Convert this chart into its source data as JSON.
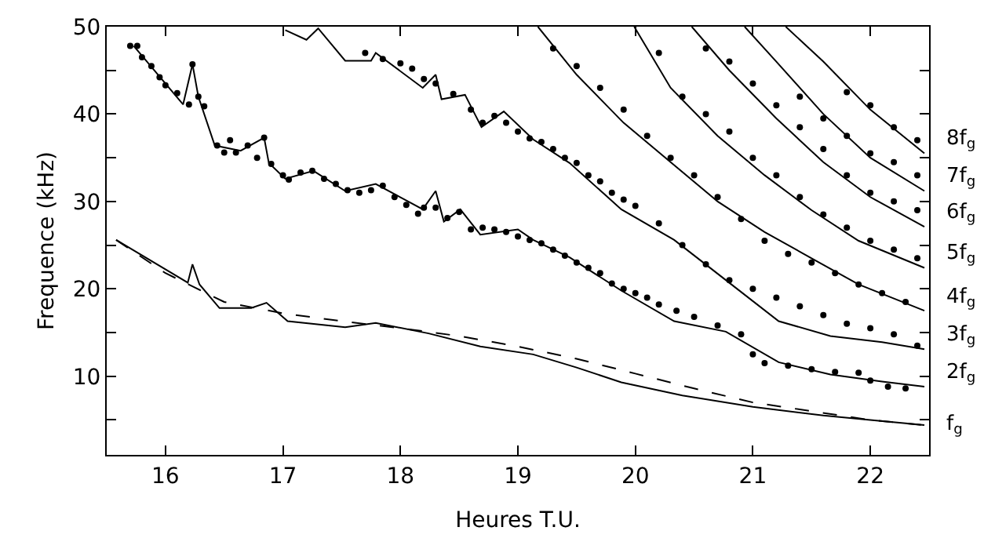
{
  "chart_data": {
    "type": "line",
    "xlabel": "Heures T.U.",
    "ylabel": "Frequence (kHz)",
    "xlim": [
      15.5,
      22.5
    ],
    "ylim": [
      1,
      50
    ],
    "xticks": [
      16,
      17,
      18,
      19,
      20,
      21,
      22
    ],
    "yticks": [
      {
        "value": 5,
        "label": null
      },
      10,
      {
        "value": 15,
        "label": null
      },
      20,
      {
        "value": 25,
        "label": null
      },
      30,
      {
        "value": 35,
        "label": null
      },
      40,
      {
        "value": 45,
        "label": null
      },
      50
    ],
    "series": [
      {
        "line_style": "solid",
        "color": "#000000",
        "x": [
          15.58,
          16.19,
          16.23,
          16.29,
          16.46,
          16.73,
          16.86,
          17.04,
          17.53,
          17.79,
          18.24,
          18.68,
          19.13,
          19.5,
          19.88,
          20.4,
          21.0,
          21.6,
          22.0,
          22.46
        ],
        "values": [
          25.6,
          20.7,
          22.8,
          20.5,
          17.8,
          17.8,
          18.4,
          16.3,
          15.6,
          16.1,
          14.9,
          13.4,
          12.5,
          11.0,
          9.3,
          7.8,
          6.5,
          5.5,
          5.0,
          4.4
        ]
      },
      {
        "line_style": "dashed",
        "color": "#000000",
        "x": [
          15.58,
          16.0,
          16.5,
          17.0,
          17.5,
          18.0,
          18.5,
          19.0,
          19.5,
          20.0,
          20.5,
          21.0,
          21.5,
          22.0,
          22.46
        ],
        "values": [
          25.6,
          21.8,
          18.5,
          17.2,
          16.3,
          15.5,
          14.6,
          13.4,
          12.0,
          10.3,
          8.6,
          7.0,
          6.0,
          5.0,
          4.4
        ]
      },
      {
        "line_style": "solid",
        "color": "#000000",
        "x": [
          15.73,
          16.15,
          16.23,
          16.28,
          16.42,
          16.64,
          16.84,
          16.88,
          17.02,
          17.26,
          17.53,
          17.79,
          18.19,
          18.3,
          18.37,
          18.51,
          18.68,
          19.0,
          19.13,
          19.44,
          19.88,
          20.33,
          20.77,
          21.22,
          21.66,
          22.1,
          22.46
        ],
        "values": [
          47.8,
          41.1,
          45.7,
          42.0,
          36.4,
          35.8,
          37.3,
          34.4,
          32.6,
          33.5,
          31.2,
          32.0,
          29.1,
          31.2,
          27.7,
          29.1,
          26.2,
          26.8,
          25.6,
          23.6,
          19.8,
          16.3,
          15.1,
          11.6,
          10.2,
          9.4,
          8.8
        ]
      },
      {
        "line_style": "solid",
        "color": "#000000",
        "x": [
          17.02,
          17.2,
          17.3,
          17.53,
          17.75,
          17.79,
          18.19,
          18.3,
          18.35,
          18.55,
          18.69,
          18.88,
          19.13,
          19.44,
          19.88,
          20.33,
          20.77,
          21.22,
          21.66,
          22.1,
          22.46
        ],
        "values": [
          49.6,
          48.5,
          49.8,
          46.1,
          46.1,
          47.0,
          43.0,
          44.5,
          41.7,
          42.2,
          38.5,
          40.3,
          37.1,
          34.4,
          29.1,
          25.6,
          21.0,
          16.3,
          14.6,
          13.9,
          13.1
        ]
      },
      {
        "line_style": "solid",
        "color": "#000000",
        "x": [
          19.17,
          19.5,
          19.9,
          20.3,
          20.7,
          21.1,
          21.5,
          21.9,
          22.46
        ],
        "values": [
          50,
          44.5,
          39,
          34.5,
          30,
          26.5,
          23.5,
          20.5,
          17.5
        ]
      },
      {
        "line_style": "solid",
        "color": "#000000",
        "x": [
          19.99,
          20.3,
          20.7,
          21.1,
          21.5,
          21.9,
          22.46
        ],
        "values": [
          50,
          43,
          37.5,
          33,
          29,
          25.5,
          22.4
        ]
      },
      {
        "line_style": "solid",
        "color": "#000000",
        "x": [
          20.48,
          20.8,
          21.2,
          21.6,
          22.0,
          22.46
        ],
        "values": [
          50,
          45,
          39.5,
          34.5,
          30.5,
          27.1
        ]
      },
      {
        "line_style": "solid",
        "color": "#000000",
        "x": [
          20.93,
          21.2,
          21.6,
          22.0,
          22.46
        ],
        "values": [
          50,
          46,
          40,
          35,
          31.2
        ]
      },
      {
        "line_style": "solid",
        "color": "#000000",
        "x": [
          21.28,
          21.6,
          22.0,
          22.46
        ],
        "values": [
          50,
          46,
          40.5,
          35.5
        ]
      },
      {
        "type": "scatter",
        "marker": "circle",
        "color": "#000000",
        "x": [
          15.7,
          15.76,
          15.8,
          15.88,
          15.95,
          16.0,
          16.1,
          16.2,
          16.23,
          16.28,
          16.33,
          16.44,
          16.5,
          16.55,
          16.6,
          16.7,
          16.78,
          16.84,
          16.9,
          17.0,
          17.05,
          17.15,
          17.25,
          17.35,
          17.45,
          17.55,
          17.65,
          17.75,
          17.85,
          17.95,
          18.05,
          18.15,
          18.2,
          18.3,
          18.4,
          18.5,
          18.6,
          18.7,
          18.8,
          18.9,
          19.0,
          19.1,
          19.2,
          19.3,
          19.4,
          19.5,
          19.6,
          19.7,
          19.8,
          19.9,
          20.0,
          20.1,
          20.2,
          20.35,
          20.5,
          20.7,
          20.9,
          21.0,
          21.1,
          21.3,
          21.5,
          21.7,
          21.9,
          22.0,
          22.15,
          22.3,
          17.7,
          17.85,
          18.0,
          18.1,
          18.2,
          18.3,
          18.45,
          18.6,
          18.7,
          18.8,
          18.9,
          19.0,
          19.1,
          19.2,
          19.3,
          19.4,
          19.5,
          19.6,
          19.7,
          19.8,
          19.9,
          20.0,
          20.2,
          20.4,
          20.6,
          20.8,
          21.0,
          21.2,
          21.4,
          21.6,
          21.8,
          22.0,
          22.2,
          22.4,
          19.3,
          19.5,
          19.7,
          19.9,
          20.1,
          20.3,
          20.5,
          20.7,
          20.9,
          21.1,
          21.3,
          21.5,
          21.7,
          21.9,
          22.1,
          22.3,
          20.2,
          20.4,
          20.6,
          20.8,
          21.0,
          21.2,
          21.4,
          21.6,
          21.8,
          22.0,
          22.2,
          22.4,
          20.6,
          20.8,
          21.0,
          21.2,
          21.4,
          21.6,
          21.8,
          22.0,
          22.2,
          22.4,
          21.4,
          21.6,
          21.8,
          22.0,
          22.2,
          22.4,
          21.8,
          22.0,
          22.2,
          22.4
        ],
        "values": [
          47.8,
          47.8,
          46.5,
          45.5,
          44.2,
          43.3,
          42.4,
          41.1,
          45.7,
          42.0,
          40.9,
          36.4,
          35.6,
          37.0,
          35.6,
          36.4,
          35.0,
          37.3,
          34.3,
          33.0,
          32.5,
          33.3,
          33.5,
          32.6,
          32.0,
          31.3,
          31.0,
          31.3,
          31.8,
          30.5,
          29.6,
          28.6,
          29.3,
          29.3,
          28.1,
          28.8,
          26.8,
          27.0,
          26.8,
          26.5,
          26.0,
          25.6,
          25.2,
          24.5,
          23.8,
          23.0,
          22.4,
          21.8,
          20.6,
          20.0,
          19.5,
          19.0,
          18.2,
          17.5,
          16.8,
          15.8,
          14.8,
          12.5,
          11.5,
          11.2,
          10.8,
          10.5,
          10.4,
          9.5,
          8.8,
          8.6,
          47.0,
          46.3,
          45.8,
          45.2,
          44.0,
          43.5,
          42.3,
          40.5,
          39.0,
          39.8,
          39.0,
          38.0,
          37.2,
          36.8,
          36.0,
          35.0,
          34.4,
          33.0,
          32.3,
          31.0,
          30.2,
          29.5,
          27.5,
          25.0,
          22.8,
          21.0,
          20.0,
          19.0,
          18.0,
          17.0,
          16.0,
          15.5,
          14.8,
          13.5,
          47.5,
          45.5,
          43,
          40.5,
          37.5,
          35.0,
          33,
          30.5,
          28,
          25.5,
          24.0,
          23.0,
          21.8,
          20.5,
          19.5,
          18.5,
          47,
          42,
          40,
          38,
          35,
          33,
          30.5,
          28.5,
          27.0,
          25.5,
          24.5,
          23.5,
          47.5,
          46,
          43.5,
          41,
          38.5,
          36,
          33,
          31.0,
          30.0,
          29.0,
          42,
          39.5,
          37.5,
          35.5,
          34.5,
          33.0,
          42.5,
          41,
          38.5,
          37.0
        ]
      }
    ],
    "annotations": [
      "8f$_{g}$",
      "7f$_{g}$",
      "6f$_{g}$",
      "5f$_{g}$",
      "4f$_{g}$",
      "3f$_{g}$",
      "2f$_{g}$",
      "f$_{g}$"
    ]
  }
}
